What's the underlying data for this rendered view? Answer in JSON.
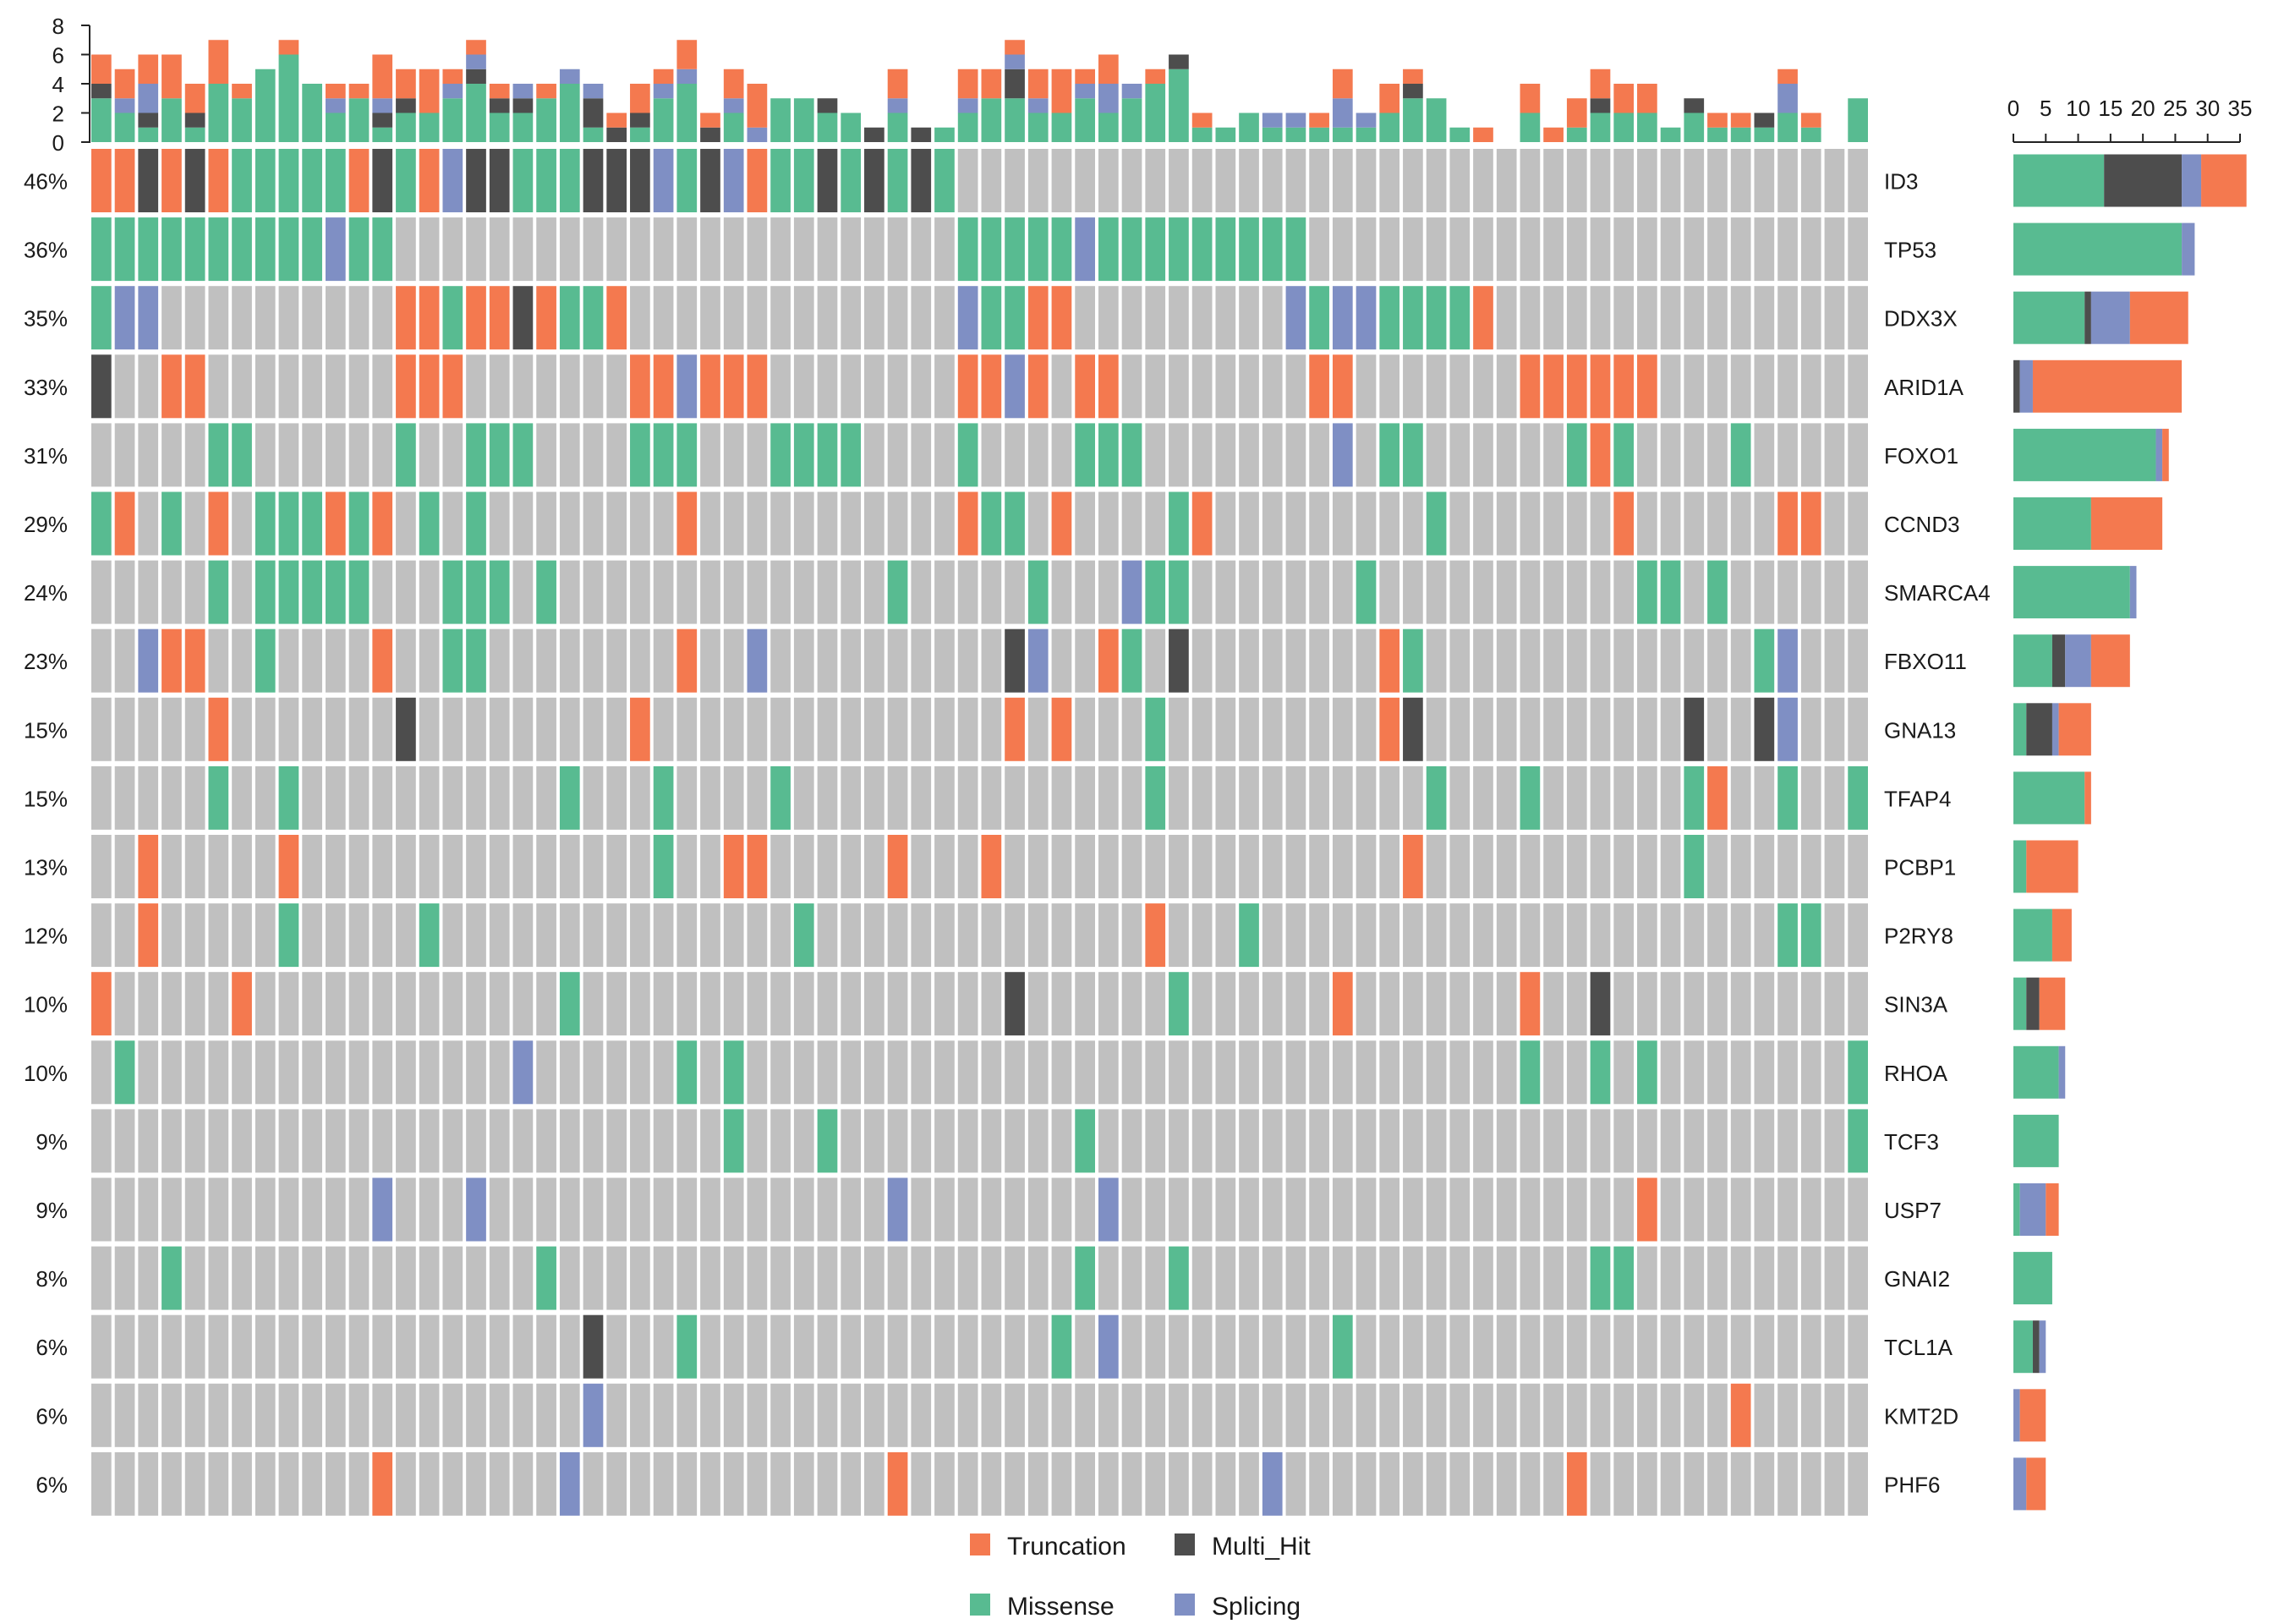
{
  "colors": {
    "Truncation": "#f4794f",
    "Missense": "#58bb91",
    "Multi_Hit": "#4d4d4d",
    "Splicing": "#7f8fc4",
    "background": "#c0c0c0"
  },
  "chart_data": {
    "type": "heatmap",
    "title": "",
    "legend": {
      "placement": "bottom-center",
      "entries": [
        "Truncation",
        "Multi_Hit",
        "Missense",
        "Splicing"
      ]
    },
    "top_axis": {
      "ticks": [
        "0",
        "2",
        "4",
        "6",
        "8"
      ],
      "range": [
        0,
        8
      ]
    },
    "side_axis": {
      "ticks": [
        "0",
        "5",
        "10",
        "15",
        "20",
        "25",
        "30",
        "35"
      ],
      "range": [
        0,
        35
      ]
    },
    "n_samples": 76,
    "genes": [
      {
        "name": "ID3",
        "percent": "46%",
        "t": "T,T,H,T,H,T,M,M,M,M,M,T,H,M,T,S,H,H,M,M,M,H,H,H,S,M,H,S,T,M,M,H,M,H,M,H,M"
      },
      {
        "name": "TP53",
        "percent": "36%",
        "t": "M,M,M,M,M,M,M,M,M,M,S,M,M,,,,,,,,,,,,,,,,,,,,,,,,,M,M,M,M,M,S,M,M,M,M,M,M,M,M,M"
      },
      {
        "name": "DDX3X",
        "percent": "35%",
        "t": "M,S,S,,,,,,,,,,,T,T,M,T,T,H,T,M,M,T,,,,,,,,,,,,,,,S,M,M,T,T,,,,,,,,,,S,M,S,S,M,M,M,M,T"
      },
      {
        "name": "ARID1A",
        "percent": "33%",
        "t": "H,,,T,T,,,,,,,,,T,T,T,,,,,,,,T,T,S,T,T,T,,,,,,,,,T,T,S,T,,T,T,,,,,,,,,T,T,,,,,,,,T,T,T,T,T,T"
      },
      {
        "name": "FOXO1",
        "percent": "31%",
        "t": ",,,,,M,M,,,,,,,M,,,M,M,M,,,,,M,M,M,,,,M,M,M,M,,,,,M,,,,,M,M,M,,,,,,,,,S,,M,M,,,,,,,M,T,M,,,,,M"
      },
      {
        "name": "CCND3",
        "percent": "29%",
        "t": "M,T,,M,,T,,M,M,M,T,M,T,,M,,M,,,,,,,,,T,,,,,,,,,,,,T,M,M,,T,,,,,M,T,,,,,,,,,,M,,,,,,,,T,,,,,,,T,T"
      },
      {
        "name": "SMARCA4",
        "percent": "24%",
        "t": ",,,,,M,,M,M,M,M,M,,,,M,M,M,,M,,,,,,,,,,,,,,,M,,,,,,M,,,,S,M,M,,,,,,,,M,,,,,,,,,,,,M,M,,M"
      },
      {
        "name": "FBXO11",
        "percent": "23%",
        "t": ",,S,T,T,,,M,,,,,T,,,M,M,,,,,,,,,T,,,S,,,,,,,,,,,H,S,,,T,M,,H,,,,,,,,,T,M,,,,,,,,,,,,,,,M,S"
      },
      {
        "name": "GNA13",
        "percent": "15%",
        "t": ",,,,,T,,,,,,,,H,,,,,,,,,,T,,,,,,,,,,,,,,,,T,,T,,,,M,,,,,,,,,,T,H,,,,,,,,,,,,H,,,H,S,,,,,M"
      },
      {
        "name": "TFAP4",
        "percent": "15%",
        "t": ",,,,,M,,,M,,,,,,,,,,,,M,,,,M,,,,,M,,,,,,,,,,,,,,,,M,,,,,,,,,,,,M,,,,M,,,,,,,M,T,,,M,,,M"
      },
      {
        "name": "PCBP1",
        "percent": "13%",
        "t": ",,T,,,,,,T,,,,,,,,,,,,,,,,M,,,T,T,,,,,,T,,,,T,,,,,,,,,,,,,,,,,,T,,,,,,,,,,,,M,,,,,,,,,,,,T"
      },
      {
        "name": "P2RY8",
        "percent": "12%",
        "t": ",,T,,,,,,M,,,,,,M,,,,,,,,,,,,,,,,M,,,,,,,,,,,,,,,T,,,,M,,,,,,,,,,,,,,,,,,,,,,,M,M,,,,,,T"
      },
      {
        "name": "SIN3A",
        "percent": "10%",
        "t": "T,,,,,,T,,,,,,,,,,,,,,M,,,,,,,,,,,,,,,,,,,H,,,,,,,M,,,,,,,T,,,,,,,,T,,,H"
      },
      {
        "name": "RHOA",
        "percent": "10%",
        "t": ",M,,,,,,,,,,,,,,,,,S,,,,,,,M,,M,,,,,,,,,,,,,,,,,,,,,,,,,,,,,,,,,,M,,,M,,M,,,,,,,,,M"
      },
      {
        "name": "TCF3",
        "percent": "9%",
        "t": ",,,,,,,,,,,,,,,,,,,,,,,,,,,M,,,,M,,,,,,,,,,,M,,,,,,,,,,,,,,,,,,,,,,,,,,,,,,,,,M,,,M,M,M"
      },
      {
        "name": "USP7",
        "percent": "9%",
        "t": ",,,,,,,,,,,,S,,,,S,,,,,,,,,,,,,,,,,,S,,,,,,,,,S,,,,,,,,,,,,,,,,,,,,,,,T,,,,,,,,,,M,,T"
      },
      {
        "name": "GNAI2",
        "percent": "8%",
        "t": ",,,M,,,,,,,,,,,,,,,,M,,,,,,,,,,,,,,,,,,,,,,,M,,,,M,,,,,,,,,,,,,,,,,,M,M"
      },
      {
        "name": "TCL1A",
        "percent": "6%",
        "t": ",,,,,,,,,,,,,,,,,,,,,H,,,,M,,,,,,,,,,,,,,,,M,,S,,,,,,,,,,M"
      },
      {
        "name": "KMT2D",
        "percent": "6%",
        "t": ",,,,,,,,,,,,,,,,,,,,,S,,,,,,,,,,,,,,,,,,,,,,,,,,,,,,,,,,,,,,,,,,,,,,,,,T,,,,,,,,T,,,,,T,,,,T"
      },
      {
        "name": "PHF6",
        "percent": "6%",
        "t": ",,,,,,,,,,,,T,,,,,,,,S,,,,,,,,,,,,,,T,,,,,,,,,,,,,,,,S,,,,,,,,,,,,,T"
      }
    ],
    "gene_counts": [
      {
        "M": 14,
        "H": 12,
        "S": 3,
        "T": 7
      },
      {
        "M": 26,
        "H": 0,
        "S": 2,
        "T": 0
      },
      {
        "M": 11,
        "H": 1,
        "S": 6,
        "T": 9
      },
      {
        "M": 0,
        "H": 1,
        "S": 2,
        "T": 23
      },
      {
        "M": 22,
        "H": 0,
        "S": 1,
        "T": 1
      },
      {
        "M": 12,
        "H": 0,
        "S": 0,
        "T": 11
      },
      {
        "M": 18,
        "H": 0,
        "S": 1,
        "T": 0
      },
      {
        "M": 6,
        "H": 2,
        "S": 4,
        "T": 6
      },
      {
        "M": 2,
        "H": 4,
        "S": 1,
        "T": 5
      },
      {
        "M": 11,
        "H": 0,
        "S": 0,
        "T": 1
      },
      {
        "M": 2,
        "H": 0,
        "S": 0,
        "T": 8
      },
      {
        "M": 6,
        "H": 0,
        "S": 0,
        "T": 3
      },
      {
        "M": 2,
        "H": 2,
        "S": 0,
        "T": 4
      },
      {
        "M": 7,
        "H": 0,
        "S": 1,
        "T": 0
      },
      {
        "M": 7,
        "H": 0,
        "S": 0,
        "T": 0
      },
      {
        "M": 1,
        "H": 0,
        "S": 4,
        "T": 2
      },
      {
        "M": 6,
        "H": 0,
        "S": 0,
        "T": 0
      },
      {
        "M": 3,
        "H": 1,
        "S": 1,
        "T": 0
      },
      {
        "M": 0,
        "H": 0,
        "S": 1,
        "T": 4
      },
      {
        "M": 0,
        "H": 0,
        "S": 2,
        "T": 3
      }
    ]
  }
}
